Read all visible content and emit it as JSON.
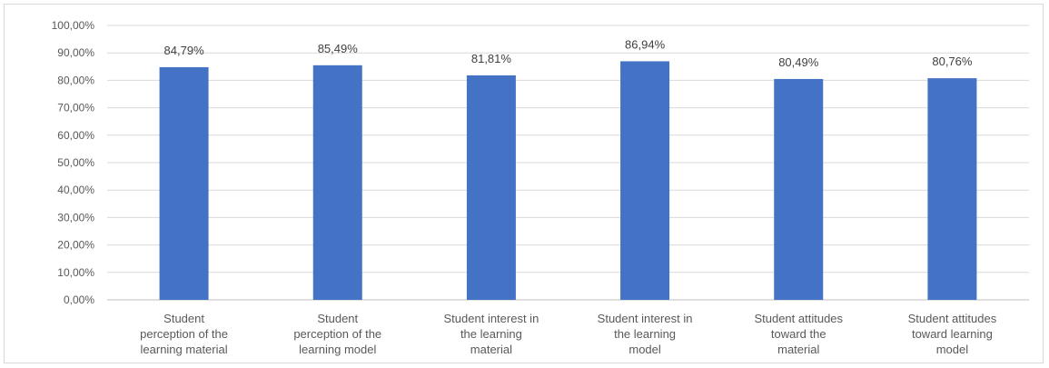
{
  "chart_data": {
    "type": "bar",
    "categories": [
      [
        "Student",
        "perception of the",
        "learning material"
      ],
      [
        "Student",
        "perception of the",
        "learning model"
      ],
      [
        "Student interest in",
        "the learning",
        "material"
      ],
      [
        "Student interest in",
        "the learning",
        "model"
      ],
      [
        "Student attitudes",
        "toward the",
        "material"
      ],
      [
        "Student attitudes",
        "toward learning",
        "model"
      ]
    ],
    "values": [
      84.79,
      85.49,
      81.81,
      86.94,
      80.49,
      80.76
    ],
    "data_labels": [
      "84,79%",
      "85,49%",
      "81,81%",
      "86,94%",
      "80,49%",
      "80,76%"
    ],
    "y_ticks": [
      "0,00%",
      "10,00%",
      "20,00%",
      "30,00%",
      "40,00%",
      "50,00%",
      "60,00%",
      "70,00%",
      "80,00%",
      "90,00%",
      "100,00%"
    ],
    "ylim": [
      0,
      100
    ],
    "title": "",
    "xlabel": "",
    "ylabel": "",
    "grid": true,
    "bar_color": "#4472c4"
  }
}
